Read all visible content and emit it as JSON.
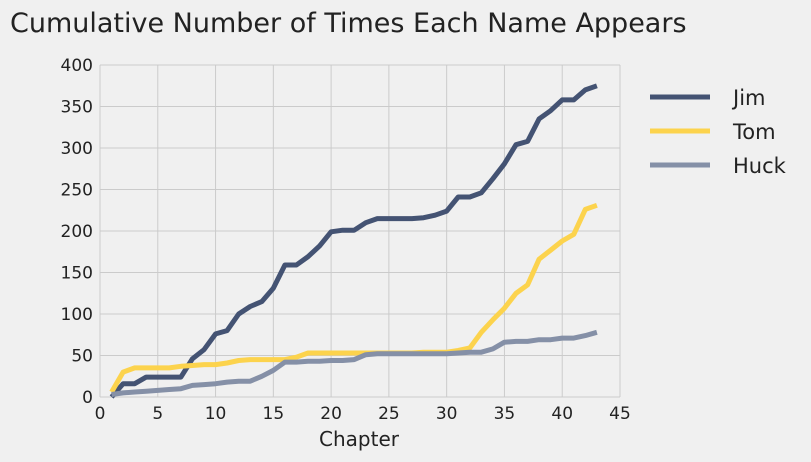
{
  "chart_data": {
    "type": "line",
    "title": "Cumulative Number of Times Each Name Appears",
    "xlabel": "Chapter",
    "ylabel": "",
    "xlim": [
      0,
      45
    ],
    "ylim": [
      0,
      400
    ],
    "xticks": [
      0,
      5,
      10,
      15,
      20,
      25,
      30,
      35,
      40,
      45
    ],
    "yticks": [
      0,
      50,
      100,
      150,
      200,
      250,
      300,
      350,
      400
    ],
    "grid": true,
    "legend": "right-outside",
    "x": [
      1,
      2,
      3,
      4,
      5,
      6,
      7,
      8,
      9,
      10,
      11,
      12,
      13,
      14,
      15,
      16,
      17,
      18,
      19,
      20,
      21,
      22,
      23,
      24,
      25,
      26,
      27,
      28,
      29,
      30,
      31,
      32,
      33,
      34,
      35,
      36,
      37,
      38,
      39,
      40,
      41,
      42,
      43
    ],
    "series": [
      {
        "name": "Jim",
        "color": "#445373",
        "values": [
          0,
          16,
          16,
          24,
          24,
          24,
          24,
          46,
          57,
          76,
          80,
          100,
          109,
          115,
          131,
          159,
          159,
          169,
          182,
          199,
          201,
          201,
          210,
          215,
          215,
          215,
          215,
          216,
          219,
          224,
          241,
          241,
          246,
          263,
          281,
          304,
          308,
          335,
          345,
          358,
          358,
          370,
          375
        ]
      },
      {
        "name": "Tom",
        "color": "#fcd34d",
        "values": [
          6,
          30,
          35,
          35,
          35,
          35,
          37,
          38,
          39,
          39,
          41,
          44,
          45,
          45,
          45,
          45,
          48,
          53,
          53,
          53,
          53,
          53,
          53,
          53,
          53,
          53,
          53,
          54,
          54,
          54,
          56,
          59,
          78,
          93,
          107,
          125,
          135,
          166,
          177,
          188,
          196,
          226,
          231
        ]
      },
      {
        "name": "Huck",
        "color": "#8590a7",
        "values": [
          3,
          5,
          6,
          7,
          8,
          9,
          10,
          14,
          15,
          16,
          18,
          19,
          19,
          25,
          32,
          42,
          42,
          43,
          43,
          44,
          44,
          45,
          51,
          52,
          52,
          52,
          52,
          52,
          52,
          52,
          53,
          54,
          54,
          58,
          66,
          67,
          67,
          69,
          69,
          71,
          71,
          74,
          78
        ]
      }
    ]
  }
}
